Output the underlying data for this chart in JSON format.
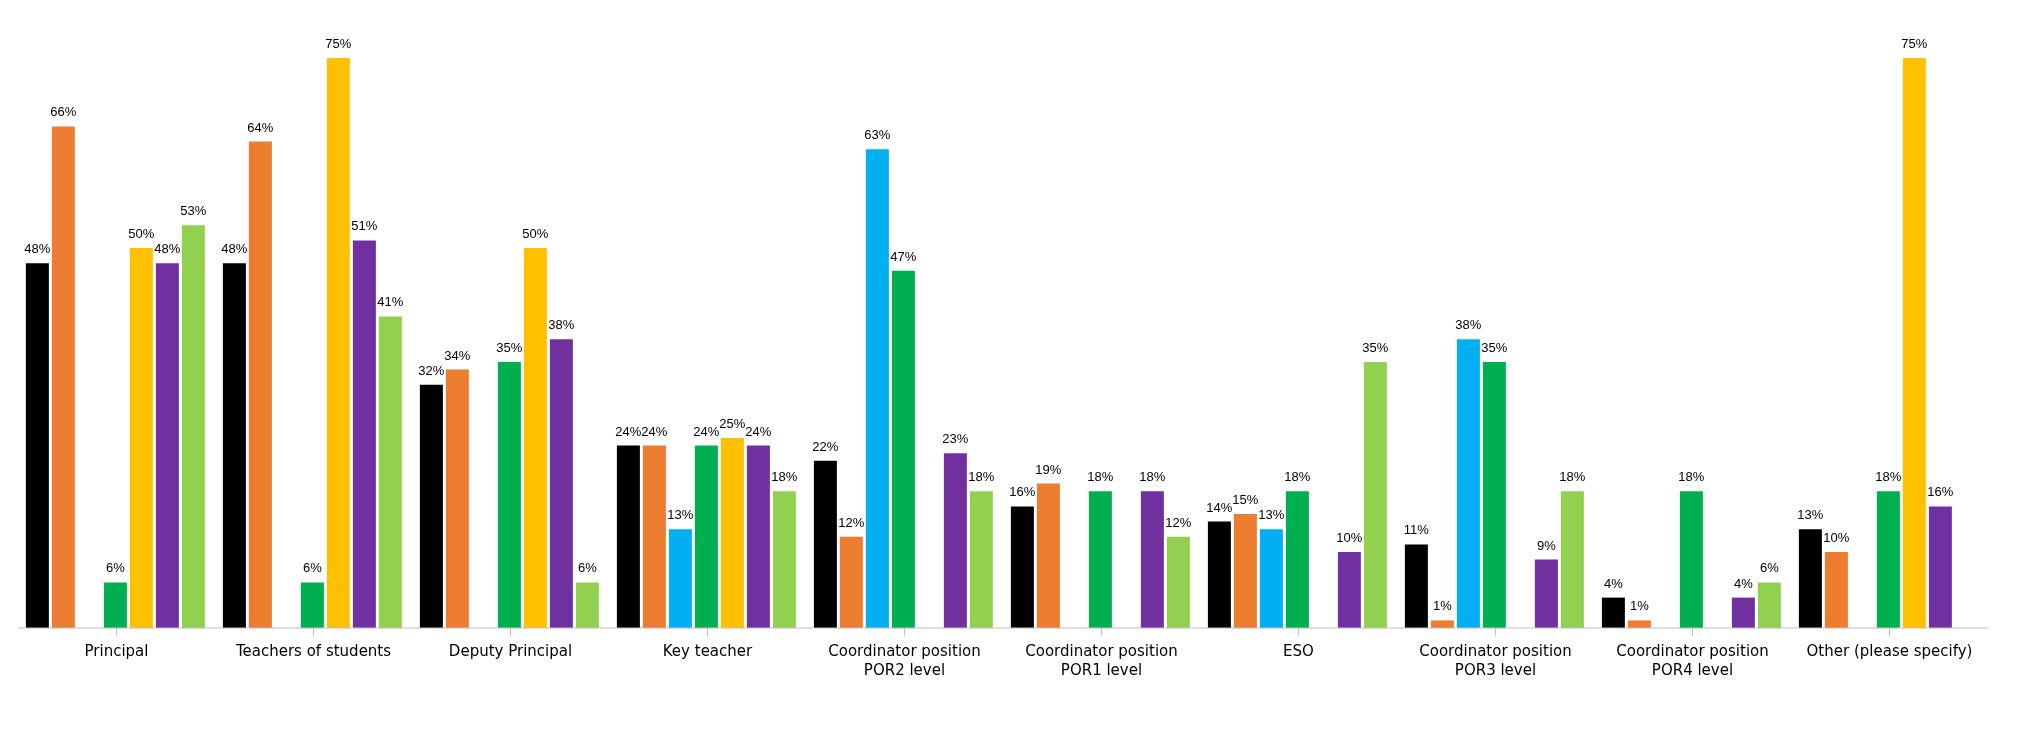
{
  "chart_data": {
    "type": "bar",
    "categories": [
      "Principal",
      "Teachers of students",
      "Deputy Principal",
      "Key teacher",
      "Coordinator position POR2 level",
      "Coordinator position POR1 level",
      "ESO",
      "Coordinator position POR3 level",
      "Coordinator position POR4 level",
      "Other (please specify)"
    ],
    "series": [
      {
        "color": "#000000",
        "values": [
          48,
          48,
          32,
          24,
          22,
          16,
          14,
          11,
          4,
          13
        ],
        "value_labels": [
          "48%",
          "48%",
          "32%",
          "24%",
          "22%",
          "16%",
          "14%",
          "11%",
          "4%",
          "13%"
        ]
      },
      {
        "color": "#ed7d31",
        "values": [
          66,
          64,
          34,
          24,
          12,
          19,
          15,
          1,
          1,
          10
        ],
        "value_labels": [
          "66%",
          "64%",
          "34%",
          "24%",
          "12%",
          "19%",
          "15%",
          "1%",
          "1%",
          "10%"
        ]
      },
      {
        "color": "#00b0f0",
        "values": [
          null,
          null,
          null,
          13,
          63,
          null,
          13,
          38,
          null,
          null
        ],
        "value_labels": [
          null,
          null,
          null,
          "13%",
          "63%",
          null,
          "13%",
          "38%",
          null,
          null
        ]
      },
      {
        "color": "#00b050",
        "values": [
          6,
          6,
          35,
          24,
          47,
          18,
          18,
          35,
          18,
          18
        ],
        "value_labels": [
          "6%",
          "6%",
          "35%",
          "24%",
          "47%",
          "18%",
          "18%",
          "35%",
          "18%",
          "18%"
        ]
      },
      {
        "color": "#ffc000",
        "values": [
          50,
          75,
          50,
          25,
          null,
          null,
          null,
          null,
          null,
          75
        ],
        "value_labels": [
          "50%",
          "75%",
          "50%",
          "25%",
          null,
          null,
          null,
          null,
          null,
          "75%"
        ]
      },
      {
        "color": "#7030a0",
        "values": [
          48,
          51,
          38,
          24,
          23,
          18,
          10,
          9,
          4,
          16
        ],
        "value_labels": [
          "48%",
          "51%",
          "38%",
          "24%",
          "23%",
          "18%",
          "10%",
          "9%",
          "4%",
          "16%"
        ]
      },
      {
        "color": "#92d050",
        "values": [
          53,
          41,
          6,
          18,
          18,
          12,
          35,
          18,
          6,
          null
        ],
        "value_labels": [
          "53%",
          "41%",
          "6%",
          "18%",
          "18%",
          "12%",
          "35%",
          "18%",
          "6%",
          null
        ]
      }
    ]
  }
}
